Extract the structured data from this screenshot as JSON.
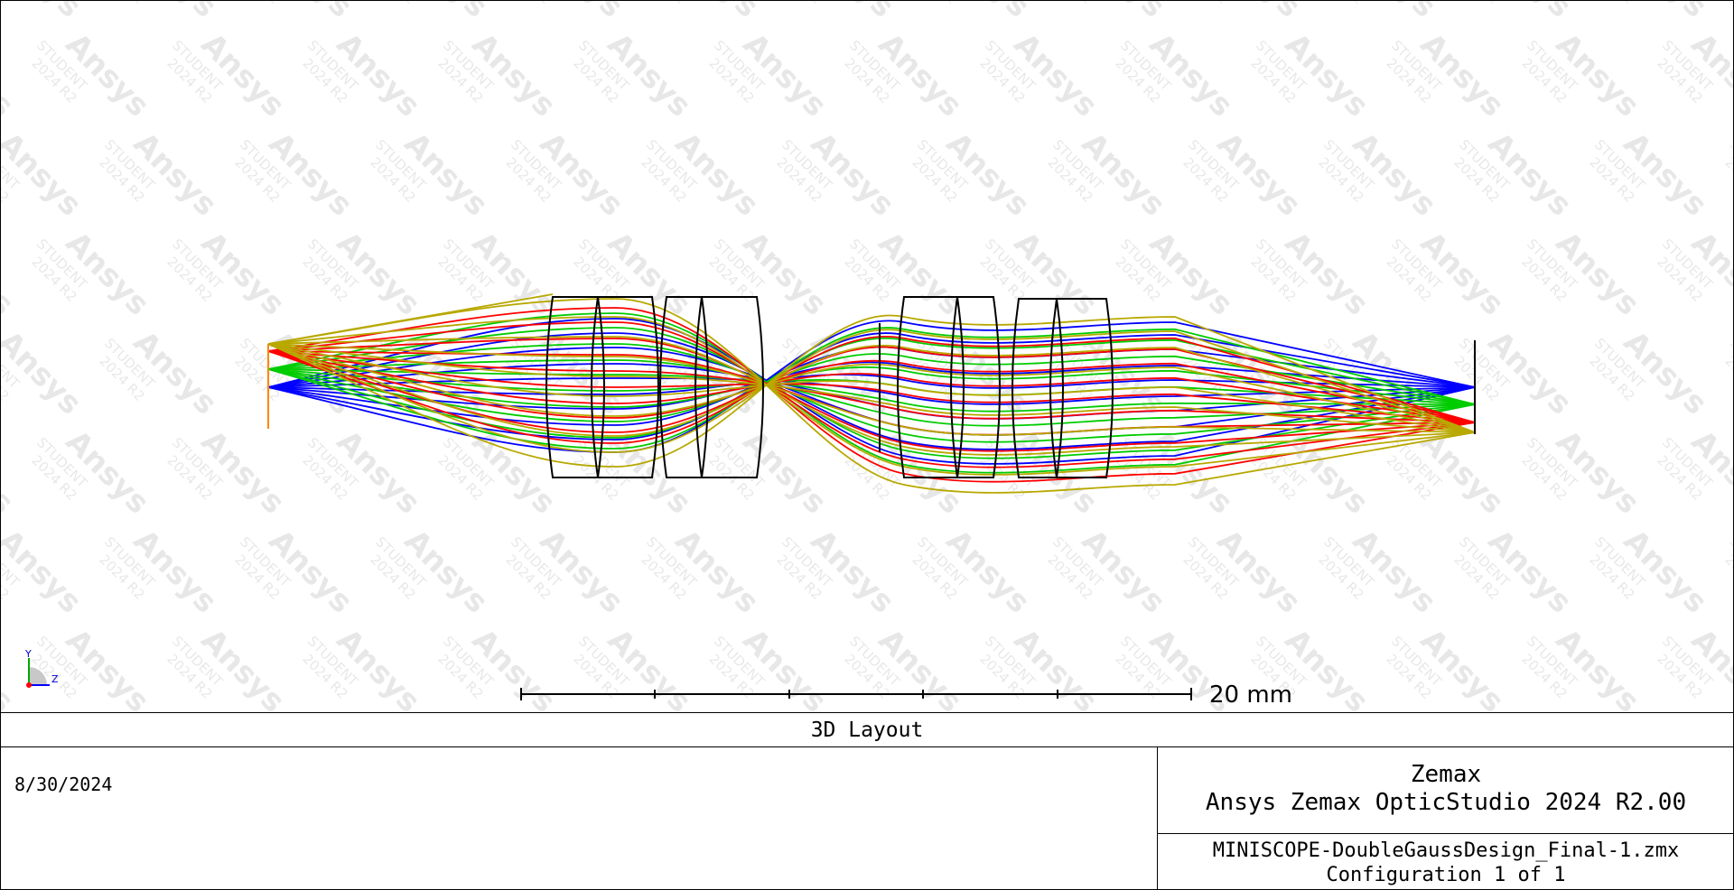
{
  "plot": {
    "watermark_brand": "Ansys",
    "watermark_sub1": "STUDENT",
    "watermark_sub2": "2024 R2",
    "scale_label": "20 mm",
    "axis_y_label": "Y",
    "axis_z_label": "Z",
    "ray_colors": [
      "#0000ff",
      "#00cc00",
      "#ff0000",
      "#b8a800",
      "#ff8800"
    ],
    "lens_color": "#000000"
  },
  "footer": {
    "title": "3D Layout",
    "date": "8/30/2024",
    "vendor_line1": "Zemax",
    "vendor_line2": "Ansys Zemax OpticStudio 2024 R2.00",
    "file_name": "MINISCOPE-DoubleGaussDesign_Final-1.zmx",
    "configuration": "Configuration 1 of 1"
  }
}
